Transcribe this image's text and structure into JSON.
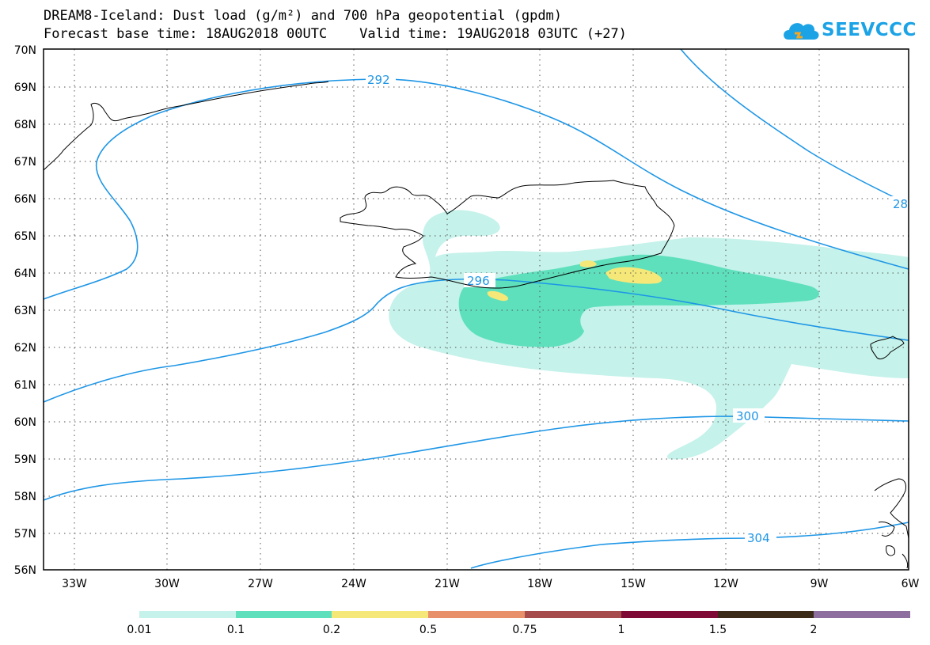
{
  "title": {
    "line1": "DREAM8-Iceland: Dust load (g/m²) and 700 hPa geopotential (gpdm)",
    "line2": "Forecast base time: 18AUG2018 00UTC    Valid time: 19AUG2018 03UTC (+27)"
  },
  "logo": {
    "text": "SEEVCCC",
    "icon": "cloud-icon",
    "color": "#1ca3e6"
  },
  "map": {
    "lon_labels": [
      "33W",
      "30W",
      "27W",
      "24W",
      "21W",
      "18W",
      "15W",
      "12W",
      "9W",
      "6W"
    ],
    "lat_labels": [
      "70N",
      "69N",
      "68N",
      "67N",
      "66N",
      "65N",
      "64N",
      "63N",
      "62N",
      "61N",
      "60N",
      "59N",
      "58N",
      "57N",
      "56N"
    ],
    "contour_labels": [
      "292",
      "296",
      "300",
      "304",
      "28"
    ],
    "contour_color": "#1e96e6",
    "coastline_color": "#000000"
  },
  "colorbar": {
    "colors": [
      "#c5f2ea",
      "#5ee0bd",
      "#f5e878",
      "#e8906a",
      "#a64c4c",
      "#800a36",
      "#3b2a18",
      "#8e6e9e"
    ],
    "labels": [
      "0.01",
      "0.1",
      "0.2",
      "0.5",
      "0.75",
      "1",
      "1.5",
      "2"
    ]
  }
}
